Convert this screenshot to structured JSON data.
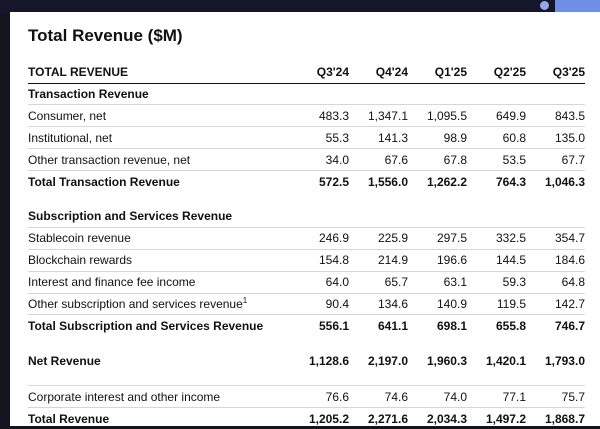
{
  "title": "Total Revenue ($M)",
  "header": {
    "label": "TOTAL REVENUE",
    "periods": [
      "Q3'24",
      "Q4'24",
      "Q1'25",
      "Q2'25",
      "Q3'25"
    ]
  },
  "sections": {
    "transaction": {
      "title": "Transaction Revenue",
      "rows": [
        {
          "label": "Consumer, net",
          "values": [
            "483.3",
            "1,347.1",
            "1,095.5",
            "649.9",
            "843.5"
          ]
        },
        {
          "label": "Institutional, net",
          "values": [
            "55.3",
            "141.3",
            "98.9",
            "60.8",
            "135.0"
          ]
        },
        {
          "label": "Other transaction revenue, net",
          "values": [
            "34.0",
            "67.6",
            "67.8",
            "53.5",
            "67.7"
          ]
        }
      ],
      "total": {
        "label": "Total Transaction Revenue",
        "values": [
          "572.5",
          "1,556.0",
          "1,262.2",
          "764.3",
          "1,046.3"
        ]
      }
    },
    "subscription": {
      "title": "Subscription and Services Revenue",
      "rows": [
        {
          "label": "Stablecoin revenue",
          "values": [
            "246.9",
            "225.9",
            "297.5",
            "332.5",
            "354.7"
          ]
        },
        {
          "label": "Blockchain rewards",
          "values": [
            "154.8",
            "214.9",
            "196.6",
            "144.5",
            "184.6"
          ]
        },
        {
          "label": "Interest and finance fee income",
          "values": [
            "64.0",
            "65.7",
            "63.1",
            "59.3",
            "64.8"
          ]
        },
        {
          "label": "Other subscription and services revenue",
          "footnote": "1",
          "values": [
            "90.4",
            "134.6",
            "140.9",
            "119.5",
            "142.7"
          ]
        }
      ],
      "total": {
        "label": "Total Subscription and Services Revenue",
        "values": [
          "556.1",
          "641.1",
          "698.1",
          "655.8",
          "746.7"
        ]
      }
    }
  },
  "net_revenue": {
    "label": "Net Revenue",
    "values": [
      "1,128.6",
      "2,197.0",
      "1,960.3",
      "1,420.1",
      "1,793.0"
    ]
  },
  "corporate_interest": {
    "label": "Corporate interest and other income",
    "values": [
      "76.6",
      "74.6",
      "74.0",
      "77.1",
      "75.7"
    ]
  },
  "total_revenue": {
    "label": "Total Revenue",
    "values": [
      "1,205.2",
      "2,271.6",
      "2,034.3",
      "1,497.2",
      "1,868.7"
    ]
  },
  "colors": {
    "background": "#ffffff",
    "text": "#111111",
    "rule": "#d6d6d6",
    "frame": "#141420",
    "accent": "#6f8fe6"
  }
}
